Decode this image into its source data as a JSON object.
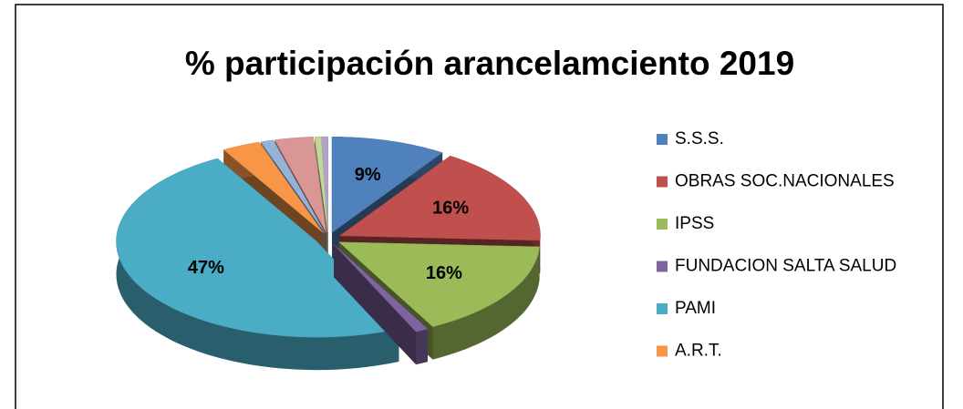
{
  "chart_data": {
    "type": "pie",
    "title": "% participación arancelamciento 2019",
    "categories": [
      "S.S.S.",
      "OBRAS SOC.NACIONALES",
      "IPSS",
      "FUNDACION SALTA SALUD",
      "PAMI",
      "A.R.T.",
      null,
      null,
      null,
      null
    ],
    "values": [
      9,
      16,
      16,
      1,
      47,
      3,
      1,
      3,
      0.5,
      0.5
    ],
    "value_labels": [
      "9%",
      "16%",
      "16%",
      null,
      "47%",
      null,
      null,
      null,
      null,
      null
    ],
    "colors": [
      "#4f81bd",
      "#c0504d",
      "#9bbb59",
      "#8064a2",
      "#4bacc6",
      "#f79646",
      "#95b3d7",
      "#d99694",
      "#c3d69b",
      "#b3a2c7"
    ],
    "legend": "right"
  }
}
